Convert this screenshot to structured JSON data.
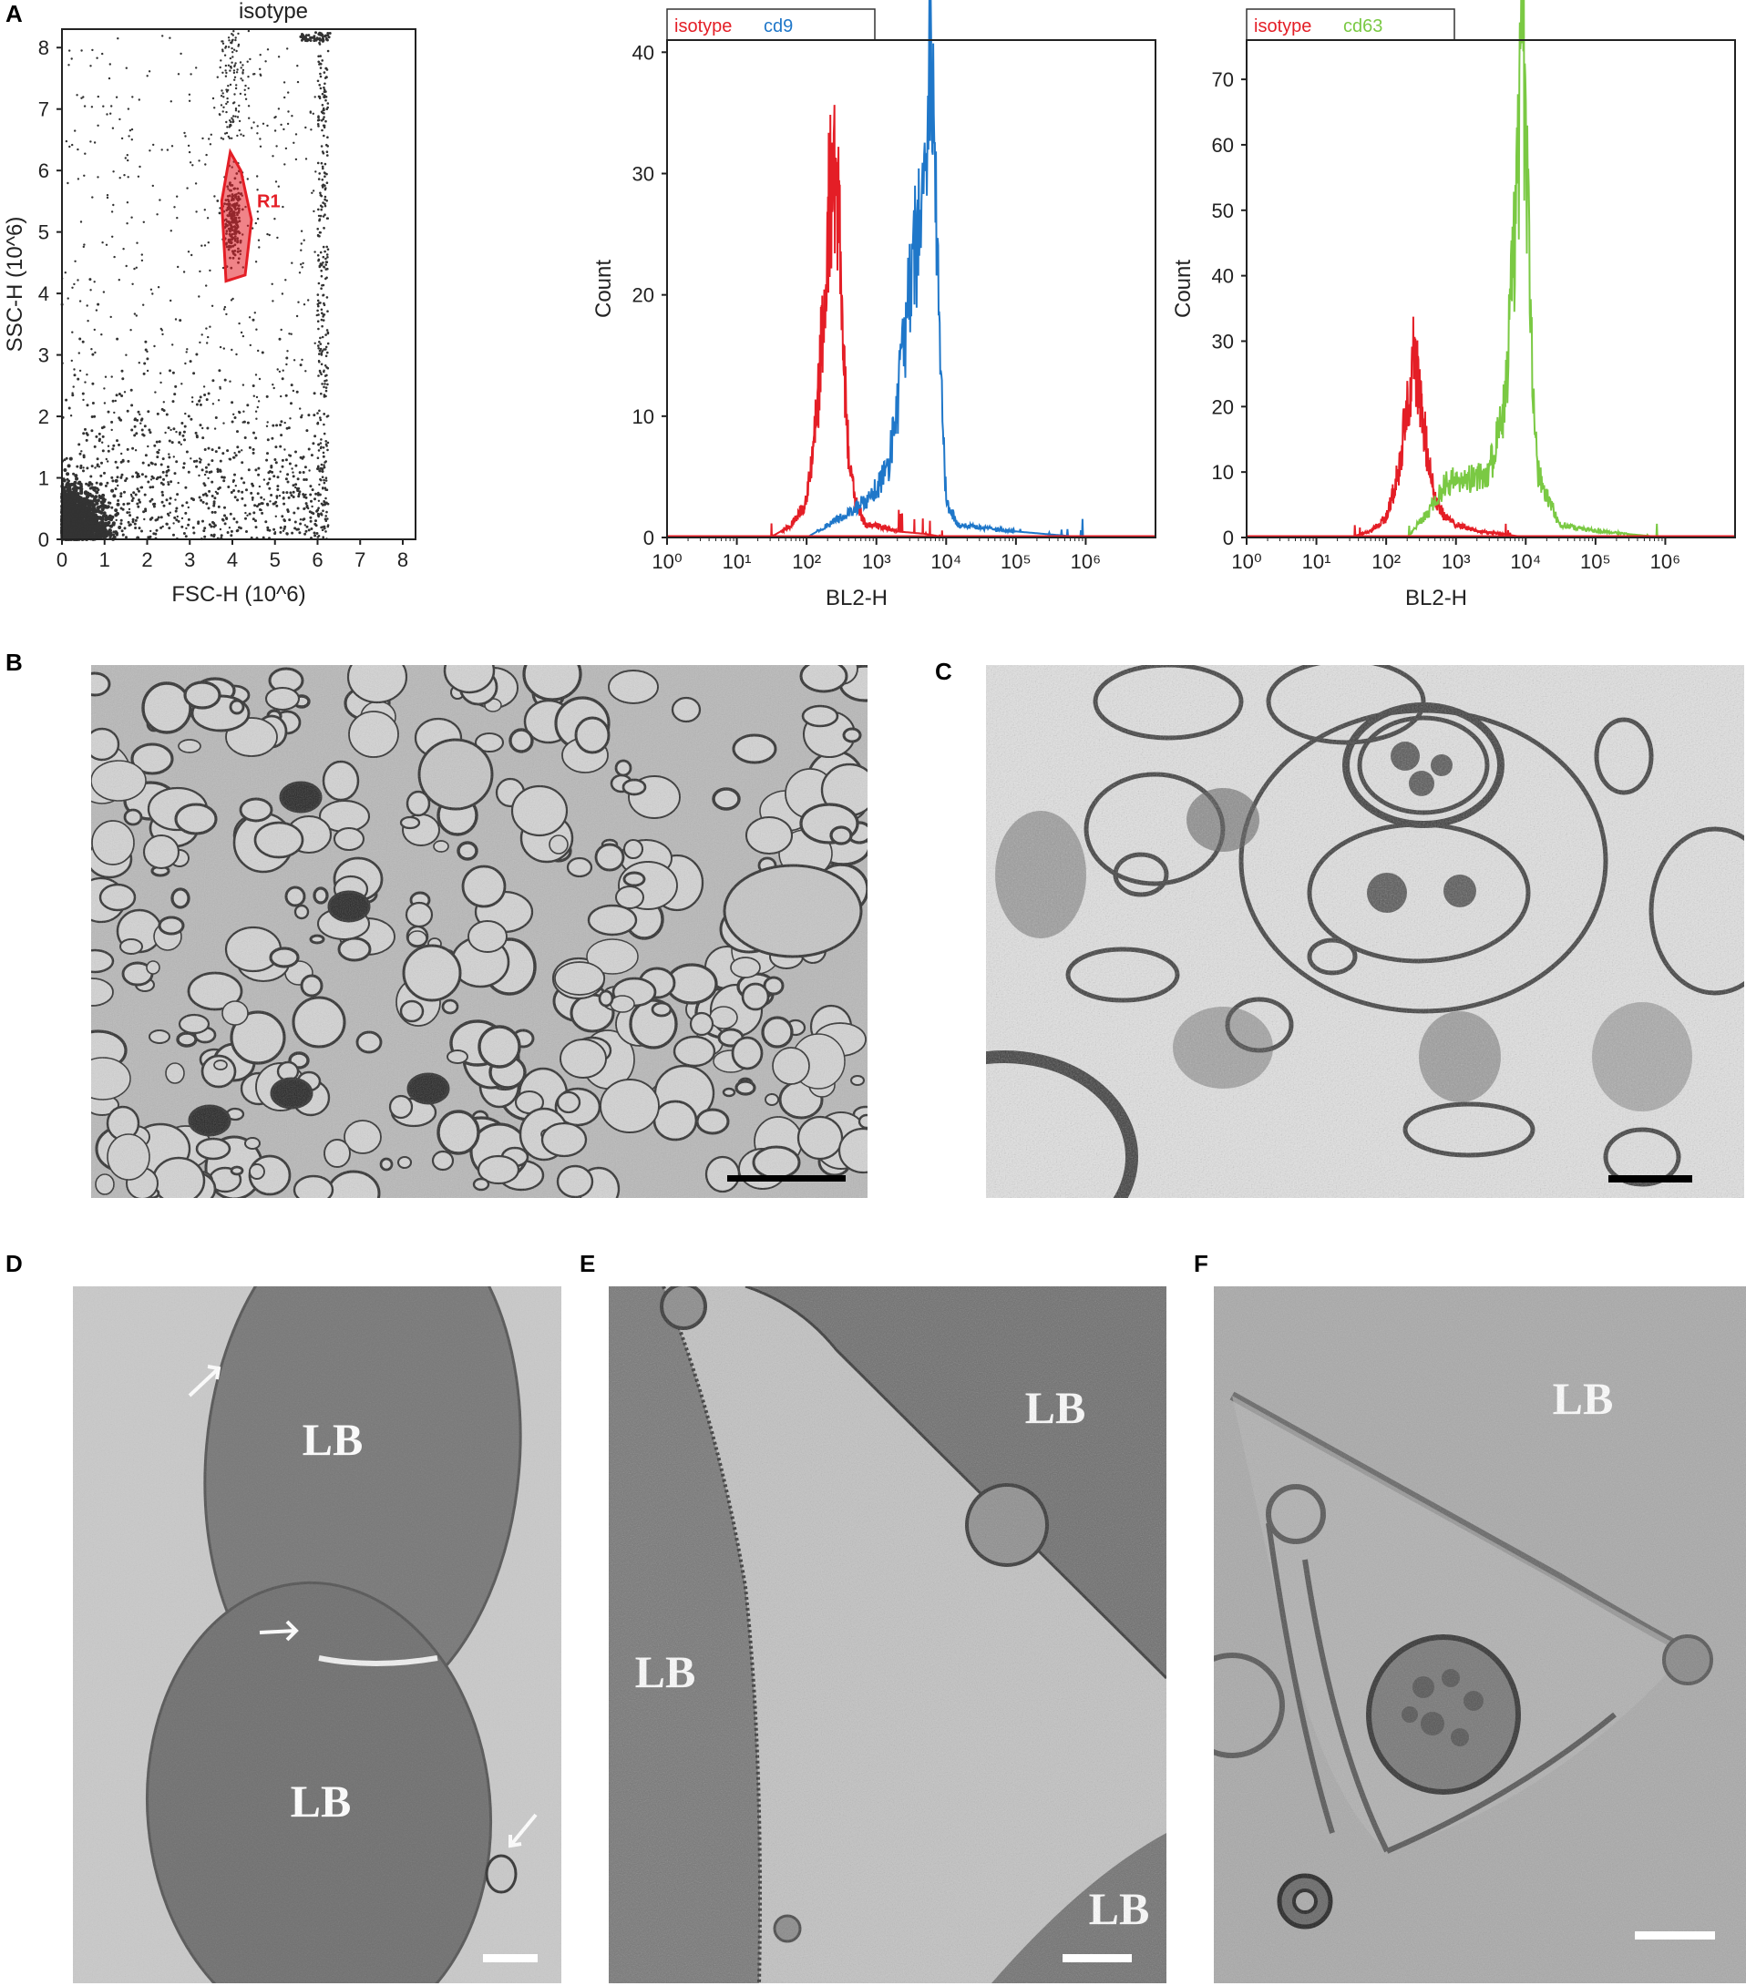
{
  "panels": {
    "A": "A",
    "B": "B",
    "C": "C",
    "D": "D",
    "E": "E",
    "F": "F"
  },
  "chart_data": [
    {
      "type": "scatter",
      "title": "isotype",
      "xlabel": "FSC-H (10^6)",
      "ylabel": "SSC-H (10^6)",
      "xlim": [
        0,
        8.3
      ],
      "ylim": [
        0,
        8.3
      ],
      "x_ticks": [
        "0",
        "1",
        "2",
        "3",
        "4",
        "5",
        "6",
        "7",
        "8"
      ],
      "y_ticks": [
        "0",
        "1",
        "2",
        "3",
        "4",
        "5",
        "6",
        "7",
        "8"
      ],
      "gate": {
        "label": "R1",
        "color": "#e41e26",
        "polygon": [
          [
            3.85,
            4.2
          ],
          [
            4.3,
            4.3
          ],
          [
            4.45,
            5.2
          ],
          [
            4.2,
            6.0
          ],
          [
            3.95,
            6.3
          ],
          [
            3.75,
            5.5
          ]
        ]
      },
      "point_color": "#333333"
    },
    {
      "type": "line",
      "xlabel": "BL2-H",
      "ylabel": "Count",
      "xscale": "log",
      "xlim": [
        1,
        10000000
      ],
      "ylim": [
        0,
        41
      ],
      "x_ticks": [
        "10⁰",
        "10¹",
        "10²",
        "10³",
        "10⁴",
        "10⁵",
        "10⁶"
      ],
      "y_ticks": [
        "0",
        "10",
        "20",
        "30",
        "40"
      ],
      "series": [
        {
          "name": "isotype",
          "color": "#e41e26",
          "x": [
            30,
            60,
            100,
            150,
            200,
            250,
            300,
            350,
            400,
            500,
            700,
            1000,
            2000,
            5000,
            10000
          ],
          "y": [
            0,
            1,
            3,
            12,
            26,
            31,
            24,
            13,
            7,
            3,
            1,
            1,
            0.5,
            0.3,
            0
          ]
        },
        {
          "name": "cd9",
          "color": "#1f77c9",
          "x": [
            100,
            200,
            400,
            700,
            1000,
            1500,
            2000,
            3000,
            4000,
            5000,
            6000,
            7000,
            8000,
            10000,
            15000,
            100000,
            1000000
          ],
          "y": [
            0,
            1,
            2,
            3,
            4,
            6,
            11,
            20,
            26,
            30,
            40,
            30,
            16,
            3,
            1,
            0.5,
            0
          ]
        }
      ]
    },
    {
      "type": "line",
      "xlabel": "BL2-H",
      "ylabel": "Count",
      "xscale": "log",
      "xlim": [
        1,
        10000000
      ],
      "ylim": [
        0,
        76
      ],
      "x_ticks": [
        "10⁰",
        "10¹",
        "10²",
        "10³",
        "10⁴",
        "10⁵",
        "10⁶"
      ],
      "y_ticks": [
        "0",
        "10",
        "20",
        "30",
        "40",
        "50",
        "60",
        "70"
      ],
      "series": [
        {
          "name": "isotype",
          "color": "#e41e26",
          "x": [
            30,
            60,
            100,
            150,
            200,
            250,
            300,
            400,
            500,
            700,
            1000,
            2000,
            5000,
            10000
          ],
          "y": [
            0,
            1,
            3,
            10,
            20,
            28,
            22,
            12,
            6,
            3,
            2,
            1,
            0.5,
            0
          ]
        },
        {
          "name": "cd63",
          "color": "#7ac943",
          "x": [
            200,
            400,
            700,
            1000,
            2000,
            3000,
            5000,
            7000,
            8000,
            9000,
            10000,
            12000,
            15000,
            30000,
            100000,
            1000000
          ],
          "y": [
            0,
            4,
            8,
            9,
            9,
            10,
            20,
            45,
            60,
            75,
            60,
            30,
            10,
            2,
            1,
            0
          ]
        }
      ]
    }
  ],
  "micrographs": {
    "D": {
      "labels": [
        "LB",
        "LB"
      ]
    },
    "E": {
      "labels": [
        "LB",
        "LB",
        "LB"
      ]
    },
    "F": {
      "labels": [
        "LB"
      ]
    }
  }
}
